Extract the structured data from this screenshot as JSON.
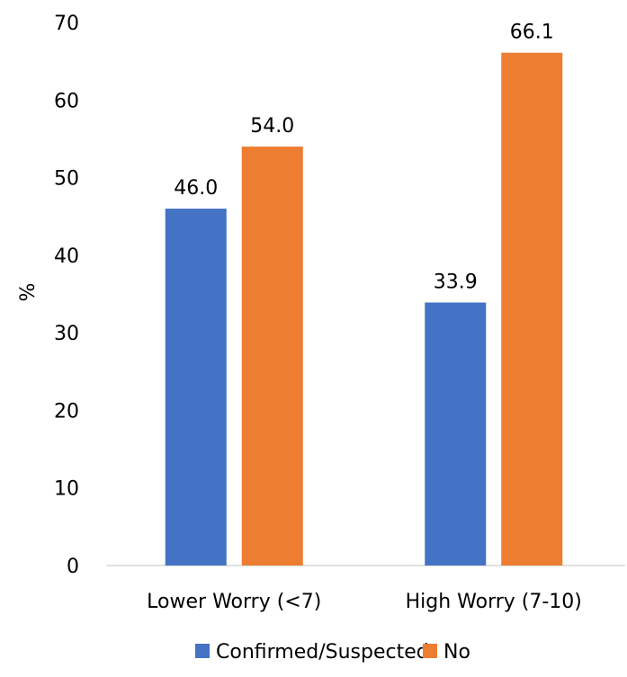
{
  "chart_data": {
    "type": "bar",
    "title": "",
    "xlabel": "",
    "ylabel": "%",
    "ylim": [
      0,
      70
    ],
    "yticks": [
      0,
      10,
      20,
      30,
      40,
      50,
      60,
      70
    ],
    "yticklabels": [
      "0",
      "10",
      "20",
      "30",
      "40",
      "50",
      "60",
      "70"
    ],
    "grid": false,
    "legend_position": "bottom",
    "categories": [
      "Lower Worry (<7)",
      "High Worry (7-10)"
    ],
    "series": [
      {
        "name": "Confirmed/Suspected",
        "values": [
          46.0,
          33.9
        ],
        "labels": [
          "46.0",
          "33.9"
        ],
        "color": "#4472C4"
      },
      {
        "name": "No",
        "values": [
          54.0,
          66.1
        ],
        "labels": [
          "54.0",
          "66.1"
        ],
        "color": "#ED7D31"
      }
    ]
  }
}
